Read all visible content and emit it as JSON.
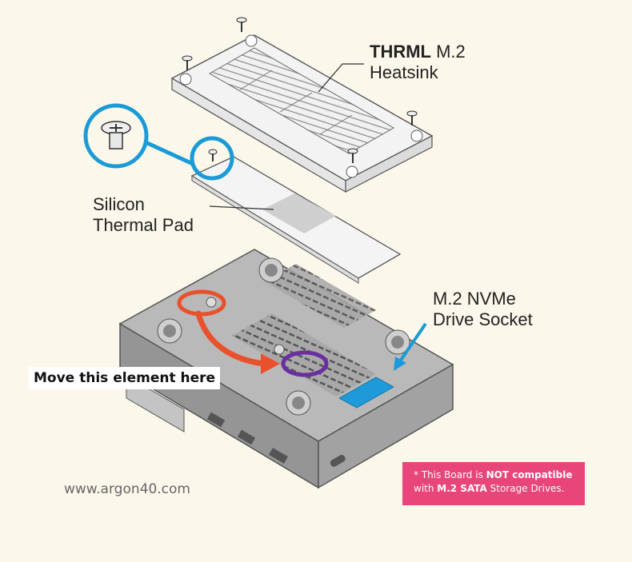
{
  "labels": {
    "heatsink_brand": "THRML",
    "heatsink_model": "M.2",
    "heatsink_word": "Heatsink",
    "pad_line1": "Silicon",
    "pad_line2": "Thermal Pad",
    "socket_line1": "M.2 NVMe",
    "socket_line2": "Drive Socket",
    "move_instruction": "Move this element here",
    "website": "www.argon40.com"
  },
  "warning": {
    "prefix": "* This Board is ",
    "emphasis": "NOT compatible",
    "line2_prefix": "with ",
    "line2_emphasis": "M.2 SATA",
    "line2_suffix": " Storage Drives."
  },
  "colors": {
    "background": "#fbf7ea",
    "zoom_circle": "#1a9bd7",
    "arrow_red": "#e8512c",
    "target_ring": "#6a2ea0",
    "socket_highlight": "#1e9ad8",
    "warning_bg": "#e8457a",
    "case_body": "#9a9a9a",
    "case_top": "#b9b9b9"
  },
  "icons": {
    "screw": "screw-icon",
    "zoomed_screw": "standoff-screw-icon",
    "arrow": "move-arrow-icon"
  }
}
